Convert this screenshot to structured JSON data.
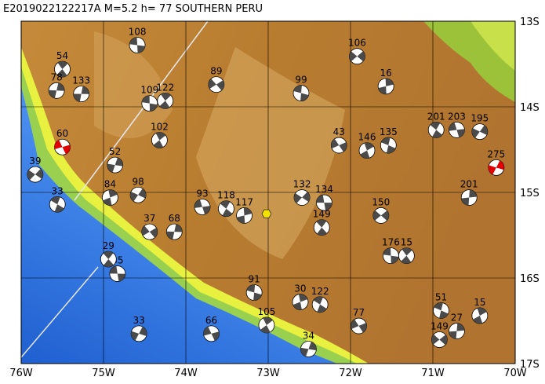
{
  "map": {
    "title": "E2019022122217A M=5.2 h= 77 SOUTHERN PERU",
    "lonlim": [
      -76,
      -70
    ],
    "latlim": [
      -13,
      -17
    ],
    "lon_ticks": [
      {
        "value": -76,
        "label": "76W"
      },
      {
        "value": -75,
        "label": "75W"
      },
      {
        "value": -74,
        "label": "74W"
      },
      {
        "value": -73,
        "label": "73W"
      },
      {
        "value": -72,
        "label": "72W"
      },
      {
        "value": -71,
        "label": "71W"
      },
      {
        "value": -70,
        "label": "70W"
      }
    ],
    "lat_ticks": [
      {
        "value": -13,
        "label": "13S"
      },
      {
        "value": -14,
        "label": "14S"
      },
      {
        "value": -15,
        "label": "15S"
      },
      {
        "value": -16,
        "label": "16S"
      },
      {
        "value": -17,
        "label": "17S"
      }
    ],
    "grid": true,
    "ball_color": "#4a4a4a",
    "epicenter": {
      "lon": -73.02,
      "lat": -15.25,
      "color": "#f5e100"
    },
    "events": [
      {
        "label": "106",
        "lon": -71.92,
        "lat": -13.41
      },
      {
        "label": "108",
        "lon": -74.59,
        "lat": -13.28
      },
      {
        "label": "54",
        "lon": -75.5,
        "lat": -13.56
      },
      {
        "label": "133",
        "lon": -75.27,
        "lat": -13.85
      },
      {
        "label": "89",
        "lon": -73.63,
        "lat": -13.74
      },
      {
        "label": "99",
        "lon": -72.6,
        "lat": -13.84
      },
      {
        "label": "102",
        "lon": -74.32,
        "lat": -14.39
      },
      {
        "label": "52",
        "lon": -74.86,
        "lat": -14.68
      },
      {
        "label": "43",
        "lon": -72.14,
        "lat": -14.45
      },
      {
        "label": "135",
        "lon": -71.54,
        "lat": -14.45
      },
      {
        "label": "146",
        "lon": -71.8,
        "lat": -14.51
      },
      {
        "label": "275",
        "lon": -70.23,
        "lat": -14.71,
        "color": "#e00000"
      },
      {
        "label": "60",
        "lon": -75.5,
        "lat": -14.47,
        "color": "#e00000"
      },
      {
        "label": "33",
        "lon": -75.56,
        "lat": -15.14
      },
      {
        "label": "84",
        "lon": -74.92,
        "lat": -15.06
      },
      {
        "label": "98",
        "lon": -74.58,
        "lat": -15.03
      },
      {
        "label": "93",
        "lon": -73.8,
        "lat": -15.17
      },
      {
        "label": "118",
        "lon": -73.51,
        "lat": -15.19
      },
      {
        "label": "117",
        "lon": -73.29,
        "lat": -15.27
      },
      {
        "label": "132",
        "lon": -72.59,
        "lat": -15.06
      },
      {
        "label": "134",
        "lon": -72.32,
        "lat": -15.12
      },
      {
        "label": "149",
        "lon": -72.35,
        "lat": -15.41
      },
      {
        "label": "201",
        "lon": -70.56,
        "lat": -15.06
      },
      {
        "label": "150",
        "lon": -71.63,
        "lat": -15.27
      },
      {
        "label": "176",
        "lon": -71.51,
        "lat": -15.74
      },
      {
        "label": "15",
        "lon": -71.32,
        "lat": -15.74
      },
      {
        "label": "68",
        "lon": -74.14,
        "lat": -15.46
      },
      {
        "label": "37",
        "lon": -74.44,
        "lat": -15.46
      },
      {
        "label": "91",
        "lon": -73.17,
        "lat": -16.17
      },
      {
        "label": "105",
        "lon": -73.02,
        "lat": -16.55
      },
      {
        "label": "34",
        "lon": -72.51,
        "lat": -16.83
      },
      {
        "label": "77",
        "lon": -71.9,
        "lat": -16.56
      },
      {
        "label": "51",
        "lon": -70.9,
        "lat": -16.38
      },
      {
        "label": "15",
        "lon": -70.43,
        "lat": -16.44
      },
      {
        "label": "33",
        "lon": -74.57,
        "lat": -16.65
      },
      {
        "label": "66",
        "lon": -73.69,
        "lat": -16.65
      },
      {
        "label": "122",
        "lon": -72.37,
        "lat": -16.31
      },
      {
        "label": "30",
        "lon": -72.61,
        "lat": -16.28
      },
      {
        "label": "195",
        "lon": -70.43,
        "lat": -14.29
      },
      {
        "label": "203",
        "lon": -70.71,
        "lat": -14.27
      },
      {
        "label": "201",
        "lon": -70.96,
        "lat": -14.27
      },
      {
        "label": "16",
        "lon": -71.57,
        "lat": -13.76
      },
      {
        "label": "39",
        "lon": -75.83,
        "lat": -14.79
      },
      {
        "label": "35",
        "lon": -74.83,
        "lat": -15.95
      },
      {
        "label": "29",
        "lon": -74.94,
        "lat": -15.78
      },
      {
        "label": "27",
        "lon": -70.71,
        "lat": -16.62
      },
      {
        "label": "149",
        "lon": -70.92,
        "lat": -16.72
      },
      {
        "label": "109",
        "lon": -74.44,
        "lat": -13.96
      },
      {
        "label": "122",
        "lon": -74.25,
        "lat": -13.93
      },
      {
        "label": "78",
        "lon": -75.57,
        "lat": -13.81
      }
    ]
  }
}
